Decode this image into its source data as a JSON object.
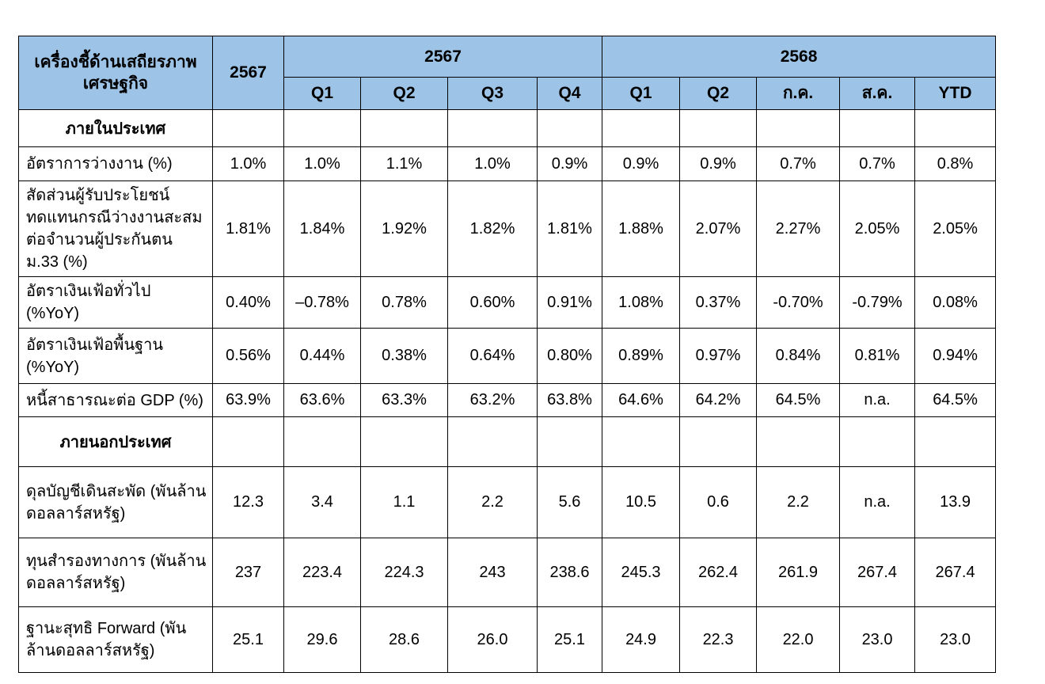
{
  "table": {
    "header": {
      "indicator_title": "เครื่องชี้ด้านเสถียรภาพเศรษฐกิจ",
      "annual_label": "2567",
      "groups": [
        {
          "label": "2567",
          "cols": [
            "Q1",
            "Q2",
            "Q3",
            "Q4"
          ]
        },
        {
          "label": "2568",
          "cols": [
            "Q1",
            "Q2",
            "ก.ค.",
            "ส.ค.",
            "YTD"
          ]
        }
      ]
    },
    "sections": [
      {
        "title": "ภายในประเทศ",
        "rows": [
          {
            "label": "อัตราการว่างงาน (%)",
            "values": [
              "1.0%",
              "1.0%",
              "1.1%",
              "1.0%",
              "0.9%",
              "0.9%",
              "0.9%",
              "0.7%",
              "0.7%",
              "0.8%"
            ]
          },
          {
            "label": "สัดส่วนผู้รับประโยชน์ทดแทนกรณีว่างงานสะสมต่อจำนวนผู้ประกันตน ม.33 (%)",
            "values": [
              "1.81%",
              "1.84%",
              "1.92%",
              "1.82%",
              "1.81%",
              "1.88%",
              "2.07%",
              "2.27%",
              "2.05%",
              "2.05%"
            ]
          },
          {
            "label": "อัตราเงินเฟ้อทั่วไป (%YoY)",
            "values": [
              "0.40%",
              "–0.78%",
              "0.78%",
              "0.60%",
              "0.91%",
              "1.08%",
              "0.37%",
              "-0.70%",
              "-0.79%",
              "0.08%"
            ]
          },
          {
            "label": "อัตราเงินเฟ้อพื้นฐาน (%YoY)",
            "values": [
              "0.56%",
              "0.44%",
              "0.38%",
              "0.64%",
              "0.80%",
              "0.89%",
              "0.97%",
              "0.84%",
              "0.81%",
              "0.94%"
            ]
          },
          {
            "label": "หนี้สาธารณะต่อ GDP (%)",
            "values": [
              "63.9%",
              "63.6%",
              "63.3%",
              "63.2%",
              "63.8%",
              "64.6%",
              "64.2%",
              "64.5%",
              "n.a.",
              "64.5%"
            ]
          }
        ]
      },
      {
        "title": "ภายนอกประเทศ",
        "rows": [
          {
            "label": "ดุลบัญชีเดินสะพัด (พันล้านดอลลาร์สหรัฐ)",
            "values": [
              "12.3",
              "3.4",
              "1.1",
              "2.2",
              "5.6",
              "10.5",
              "0.6",
              "2.2",
              "n.a.",
              "13.9"
            ]
          },
          {
            "label": "ทุนสำรองทางการ (พันล้านดอลลาร์สหรัฐ)",
            "values": [
              "237",
              "223.4",
              "224.3",
              "243",
              "238.6",
              "245.3",
              "262.4",
              "261.9",
              "267.4",
              "267.4"
            ]
          },
          {
            "label": "ฐานะสุทธิ Forward (พันล้านดอลลาร์สหรัฐ)",
            "values": [
              "25.1",
              "29.6",
              "28.6",
              "26.0",
              "25.1",
              "24.9",
              "22.3",
              "22.0",
              "23.0",
              "23.0"
            ]
          }
        ]
      }
    ],
    "colors": {
      "header_bg": "#9DC3E6",
      "border": "#000000"
    }
  }
}
